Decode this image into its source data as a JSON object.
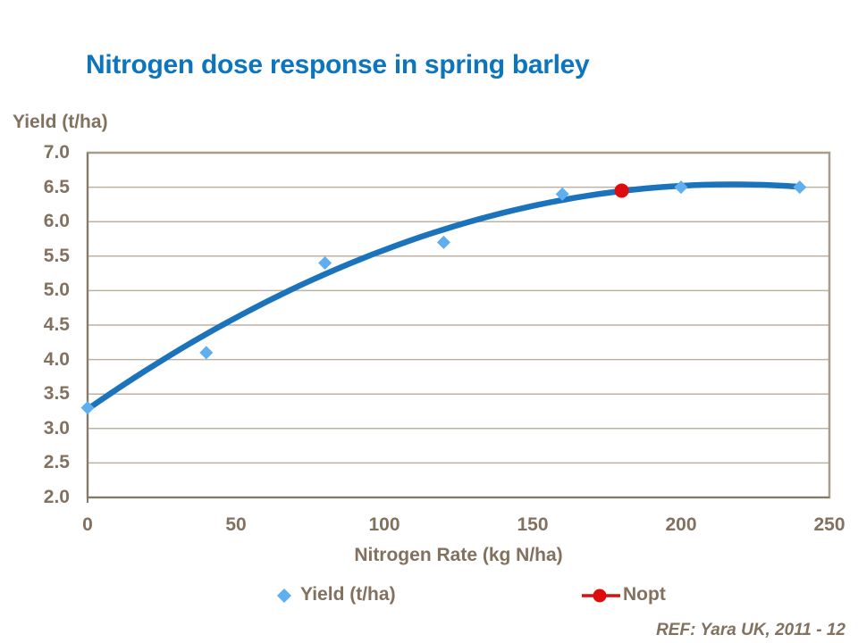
{
  "page": {
    "background": "#ffffff"
  },
  "header": {
    "title": "Nitrogen dose response in spring barley"
  },
  "footer": {
    "ref": "REF: Yara UK, 2011 - 12"
  },
  "colors": {
    "title_blue": "#0d74be",
    "curve_blue": "#1b74bb",
    "marker_light_blue": "#5faef0",
    "nopt_red": "#de0d0d",
    "text_brown": "#82715e",
    "gridline_tan": "#bdb2a1",
    "border_tan": "#a89c8b",
    "axis_brown": "#857a67"
  },
  "chart_data": {
    "type": "scatter",
    "title": "Nitrogen dose response in spring barley",
    "xlabel": "Nitrogen Rate (kg N/ha)",
    "ylabel": "Yield (t/ha)",
    "xlim": [
      0,
      250
    ],
    "ylim": [
      2.0,
      7.0
    ],
    "x_ticks": [
      "0",
      "50",
      "100",
      "150",
      "200",
      "250"
    ],
    "y_ticks": [
      "7.0",
      "6.5",
      "6.0",
      "5.5",
      "5.0",
      "4.5",
      "4.0",
      "3.5",
      "3.0",
      "2.5",
      "2.0"
    ],
    "grid": "horizontal-only",
    "legend_position": "bottom",
    "series": [
      {
        "name": "Yield (t/ha)",
        "type": "scatter",
        "marker": "diamond",
        "color": "#5faef0",
        "points": [
          [
            0,
            3.3
          ],
          [
            40,
            4.1
          ],
          [
            80,
            5.4
          ],
          [
            120,
            5.7
          ],
          [
            160,
            6.4
          ],
          [
            200,
            6.5
          ],
          [
            240,
            6.5
          ]
        ]
      },
      {
        "name": "response-curve",
        "type": "line",
        "color": "#1b74bb",
        "stroke_width": 6.5,
        "fit": "quadratic",
        "coefficients": {
          "a": 3.28,
          "b": 0.03,
          "c": -6.9e-05
        },
        "x_range": [
          0,
          240
        ]
      },
      {
        "name": "Nopt",
        "type": "scatter",
        "marker": "circle",
        "color": "#de0d0d",
        "points": [
          [
            180,
            6.45
          ]
        ]
      }
    ]
  }
}
